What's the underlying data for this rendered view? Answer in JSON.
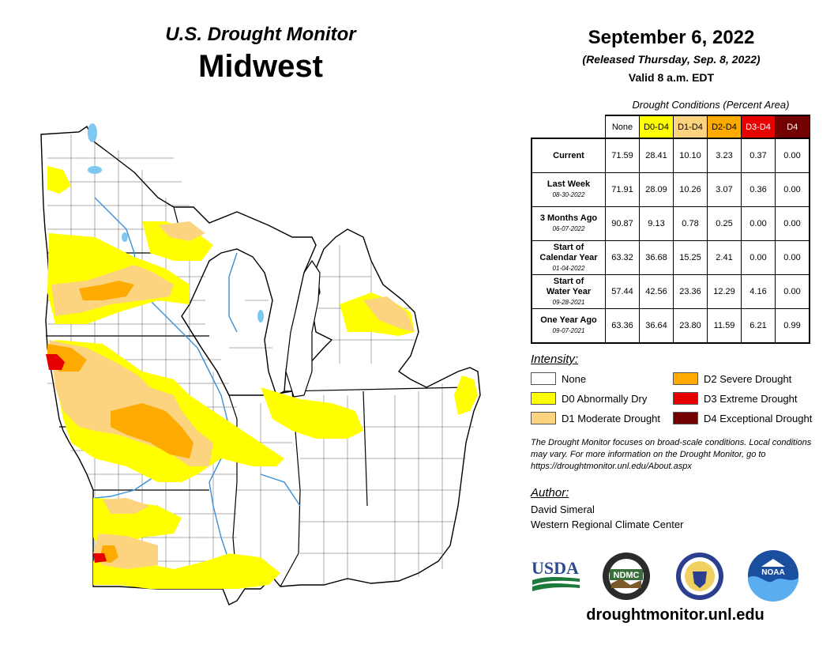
{
  "header": {
    "brand": "U.S. Drought Monitor",
    "region": "Midwest",
    "date": "September 6, 2022",
    "released": "(Released Thursday, Sep. 8, 2022)",
    "valid": "Valid 8 a.m. EDT"
  },
  "table": {
    "caption": "Drought Conditions (Percent Area)",
    "columns": [
      "None",
      "D0-D4",
      "D1-D4",
      "D2-D4",
      "D3-D4",
      "D4"
    ],
    "column_colors": [
      "#ffffff",
      "#ffff00",
      "#fcd37f",
      "#ffaa00",
      "#e60000",
      "#730000"
    ],
    "rows": [
      {
        "label": "Current",
        "date": "",
        "values": [
          "71.59",
          "28.41",
          "10.10",
          "3.23",
          "0.37",
          "0.00"
        ]
      },
      {
        "label": "Last Week",
        "date": "08-30-2022",
        "values": [
          "71.91",
          "28.09",
          "10.26",
          "3.07",
          "0.36",
          "0.00"
        ]
      },
      {
        "label": "3 Months Ago",
        "date": "06-07-2022",
        "values": [
          "90.87",
          "9.13",
          "0.78",
          "0.25",
          "0.00",
          "0.00"
        ]
      },
      {
        "label": "Start of Calendar Year",
        "date": "01-04-2022",
        "values": [
          "63.32",
          "36.68",
          "15.25",
          "2.41",
          "0.00",
          "0.00"
        ]
      },
      {
        "label": "Start of Water Year",
        "date": "09-28-2021",
        "values": [
          "57.44",
          "42.56",
          "23.36",
          "12.29",
          "4.16",
          "0.00"
        ]
      },
      {
        "label": "One Year Ago",
        "date": "09-07-2021",
        "values": [
          "63.36",
          "36.64",
          "23.80",
          "11.59",
          "6.21",
          "0.99"
        ]
      }
    ]
  },
  "legend": {
    "title": "Intensity:",
    "items": [
      {
        "label": "None",
        "color": "#ffffff"
      },
      {
        "label": "D0 Abnormally Dry",
        "color": "#ffff00"
      },
      {
        "label": "D1 Moderate Drought",
        "color": "#fcd37f"
      },
      {
        "label": "D2 Severe Drought",
        "color": "#ffaa00"
      },
      {
        "label": "D3 Extreme Drought",
        "color": "#e60000"
      },
      {
        "label": "D4 Exceptional Drought",
        "color": "#730000"
      }
    ]
  },
  "note": "The Drought Monitor focuses on broad-scale conditions. Local conditions may vary. For more information on the Drought Monitor, go to https://droughtmonitor.unl.edu/About.aspx",
  "author": {
    "title": "Author:",
    "name": "David Simeral",
    "org": "Western Regional Climate Center"
  },
  "logos": {
    "usda": "USDA",
    "ndmc": "NDMC",
    "noaa": "NOAA"
  },
  "url": "droughtmonitor.unl.edu",
  "map": {
    "water_color": "#7ec8f0",
    "outline_color": "#000000"
  }
}
